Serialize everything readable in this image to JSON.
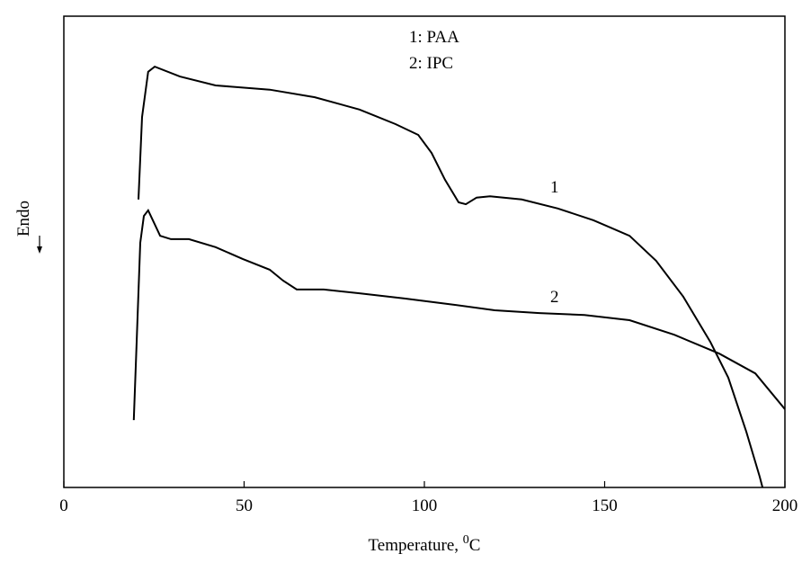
{
  "chart_data": {
    "type": "line",
    "xlabel": {
      "text": "Temperature, ",
      "superscript": "0",
      "unit": "C"
    },
    "ylabel": "Endo",
    "xlim": [
      0,
      200
    ],
    "xticks": [
      0,
      50,
      100,
      150,
      200
    ],
    "ylim": [
      0,
      100
    ],
    "series": [
      {
        "name": "1: PAA",
        "curve_label": "1",
        "color": "#000000",
        "x": [
          20.7,
          21.7,
          23.4,
          25.2,
          32.2,
          42.1,
          57.1,
          69.6,
          82.0,
          92.0,
          98.3,
          102.0,
          105.7,
          109.5,
          111.5,
          114.5,
          118.2,
          127.0,
          137.0,
          146.9,
          156.9,
          164.3,
          171.8,
          179.3,
          184.3,
          189.3,
          193.0,
          195.5
        ],
        "values": [
          61.1,
          78.6,
          88.2,
          89.3,
          87.2,
          85.3,
          84.4,
          82.8,
          80.2,
          77.1,
          74.8,
          71.0,
          65.3,
          60.5,
          60.1,
          61.5,
          61.8,
          61.1,
          59.2,
          56.7,
          53.4,
          48.1,
          40.5,
          30.9,
          23.3,
          11.8,
          2.3,
          -5.0
        ]
      },
      {
        "name": "2: IPC",
        "curve_label": "2",
        "color": "#000000",
        "x": [
          19.4,
          20.2,
          21.2,
          22.2,
          23.4,
          24.7,
          26.7,
          29.7,
          34.7,
          42.1,
          49.6,
          57.1,
          60.8,
          64.6,
          72.1,
          82.0,
          94.5,
          107.0,
          119.5,
          131.9,
          144.4,
          156.9,
          169.3,
          181.8,
          191.8,
          200.0
        ],
        "values": [
          14.3,
          30.9,
          51.9,
          57.6,
          58.8,
          56.7,
          53.4,
          52.7,
          52.7,
          51.0,
          48.5,
          46.2,
          43.9,
          42.0,
          42.0,
          41.2,
          40.1,
          38.9,
          37.6,
          37.0,
          36.6,
          35.5,
          32.4,
          28.4,
          24.2,
          16.6
        ]
      }
    ]
  }
}
